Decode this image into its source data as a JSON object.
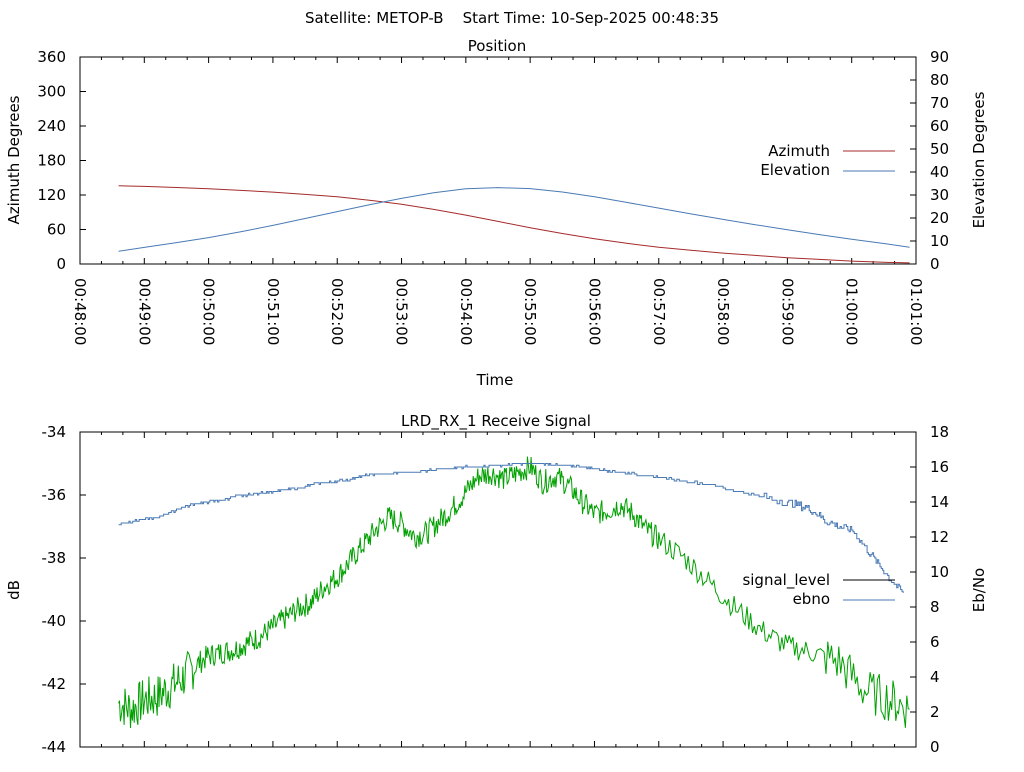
{
  "header": {
    "title": "Satellite: METOP-B    Start Time: 10-Sep-2025 00:48:35"
  },
  "colors": {
    "azimuth": "#a52a2a",
    "elevation": "#4a7ab5",
    "signal_level": "#00a000",
    "signal_legend": "#000000",
    "ebno": "#4a7ab5"
  },
  "chart_data": [
    {
      "type": "line",
      "title": "Position",
      "xlabel": "Time",
      "ylabel": "Azimuth Degrees",
      "y2label": "Elevation Degrees",
      "x_range_min": [
        0,
        13
      ],
      "x_tick_labels": [
        "00:48:00",
        "00:49:00",
        "00:50:00",
        "00:51:00",
        "00:52:00",
        "00:53:00",
        "00:54:00",
        "00:55:00",
        "00:56:00",
        "00:57:00",
        "00:58:00",
        "00:59:00",
        "01:00:00",
        "01:01:00"
      ],
      "ylim": [
        0,
        360
      ],
      "y_ticks": [
        "0",
        "60",
        "120",
        "180",
        "240",
        "300",
        "360"
      ],
      "y2lim": [
        0,
        90
      ],
      "y2_ticks": [
        "0",
        "10",
        "20",
        "30",
        "40",
        "50",
        "60",
        "70",
        "80",
        "90"
      ],
      "legend_position": "right",
      "series": [
        {
          "name": "Azimuth",
          "axis": "y",
          "x_min": [
            0.6,
            1.0,
            1.5,
            2.0,
            2.5,
            3.0,
            3.5,
            4.0,
            4.5,
            5.0,
            5.5,
            6.0,
            6.5,
            7.0,
            7.5,
            8.0,
            8.5,
            9.0,
            9.5,
            10.0,
            10.5,
            11.0,
            11.5,
            12.0,
            12.5,
            12.9
          ],
          "y": [
            136,
            135,
            133,
            131,
            128,
            125,
            121,
            117,
            111,
            104,
            95,
            85,
            74,
            63,
            53,
            44,
            36,
            29,
            24,
            19,
            15,
            11,
            8,
            5,
            3,
            2
          ]
        },
        {
          "name": "Elevation",
          "axis": "y2",
          "x_min": [
            0.6,
            1.0,
            1.5,
            2.0,
            2.5,
            3.0,
            3.5,
            4.0,
            4.5,
            5.0,
            5.5,
            6.0,
            6.5,
            7.0,
            7.5,
            8.0,
            8.5,
            9.0,
            9.5,
            10.0,
            10.5,
            11.0,
            11.5,
            12.0,
            12.5,
            12.9
          ],
          "y": [
            5.5,
            7.2,
            9.3,
            11.5,
            14,
            16.8,
            19.8,
            22.8,
            25.8,
            28.5,
            31,
            32.7,
            33.2,
            32.8,
            31.3,
            29.2,
            26.8,
            24.3,
            21.8,
            19.4,
            17.1,
            14.9,
            12.8,
            10.8,
            8.9,
            7.3
          ]
        }
      ]
    },
    {
      "type": "line",
      "title": "LRD_RX_1 Receive Signal",
      "xlabel": "",
      "ylabel": "dB",
      "y2label": "Eb/No",
      "x_range_min": [
        0,
        13
      ],
      "ylim": [
        -44,
        -34
      ],
      "y_ticks": [
        "-44",
        "-42",
        "-40",
        "-38",
        "-36",
        "-34"
      ],
      "y2lim": [
        0,
        18
      ],
      "y2_ticks": [
        "0",
        "2",
        "4",
        "6",
        "8",
        "10",
        "12",
        "14",
        "16",
        "18"
      ],
      "legend_position": "right",
      "series": [
        {
          "name": "signal_level",
          "axis": "y",
          "x_min": [
            0.6,
            0.8,
            1.0,
            1.2,
            1.4,
            1.6,
            1.8,
            2.0,
            2.2,
            2.4,
            2.6,
            2.8,
            3.0,
            3.2,
            3.4,
            3.6,
            3.8,
            4.0,
            4.2,
            4.4,
            4.6,
            4.8,
            5.0,
            5.2,
            5.4,
            5.6,
            5.8,
            6.0,
            6.2,
            6.4,
            6.6,
            6.8,
            7.0,
            7.2,
            7.4,
            7.6,
            7.8,
            8.0,
            8.2,
            8.4,
            8.6,
            8.8,
            9.0,
            9.4,
            9.8,
            10.2,
            10.6,
            11.0,
            11.4,
            11.8,
            12.2,
            12.6,
            12.9
          ],
          "y": [
            -42.6,
            -42.8,
            -42.5,
            -42.4,
            -42.1,
            -41.8,
            -41.4,
            -41.1,
            -41.0,
            -40.9,
            -40.7,
            -40.5,
            -40.2,
            -39.9,
            -39.6,
            -39.4,
            -38.9,
            -38.6,
            -38.1,
            -37.6,
            -37.1,
            -36.7,
            -36.9,
            -37.3,
            -37.2,
            -36.8,
            -36.4,
            -35.9,
            -35.4,
            -35.3,
            -35.5,
            -35.3,
            -35.1,
            -35.6,
            -35.4,
            -35.7,
            -36.2,
            -36.6,
            -36.5,
            -36.3,
            -36.6,
            -37.1,
            -37.4,
            -38.0,
            -38.8,
            -39.6,
            -40.3,
            -40.8,
            -41.0,
            -41.3,
            -42.2,
            -42.5,
            -42.8
          ]
        },
        {
          "name": "ebno",
          "axis": "y2",
          "x_min": [
            0.6,
            0.8,
            1.0,
            1.2,
            1.4,
            1.6,
            1.8,
            2.0,
            2.2,
            2.4,
            2.6,
            2.8,
            3.0,
            3.2,
            3.4,
            3.6,
            3.8,
            4.0,
            4.2,
            4.4,
            4.6,
            4.8,
            5.0,
            5.2,
            5.4,
            5.6,
            5.8,
            6.0,
            6.2,
            6.4,
            6.6,
            6.8,
            7.0,
            7.2,
            7.4,
            7.6,
            7.8,
            8.0,
            8.2,
            8.4,
            8.6,
            8.8,
            9.0,
            9.4,
            9.8,
            10.2,
            10.6,
            11.0,
            11.2,
            11.4,
            11.6,
            11.8,
            12.0,
            12.2,
            12.4,
            12.6,
            12.8
          ],
          "y": [
            12.7,
            12.9,
            13.0,
            13.1,
            13.4,
            13.7,
            13.9,
            14.0,
            14.1,
            14.3,
            14.4,
            14.5,
            14.6,
            14.7,
            14.8,
            15.0,
            15.1,
            15.2,
            15.3,
            15.5,
            15.6,
            15.6,
            15.7,
            15.7,
            15.8,
            15.9,
            15.9,
            16.0,
            16.0,
            16.1,
            16.1,
            16.2,
            16.2,
            16.2,
            16.1,
            16.1,
            16.0,
            15.9,
            15.8,
            15.7,
            15.6,
            15.5,
            15.4,
            15.2,
            15.0,
            14.6,
            14.3,
            14.0,
            13.8,
            13.5,
            12.9,
            12.6,
            12.4,
            11.5,
            10.5,
            9.6,
            8.8
          ]
        }
      ]
    }
  ]
}
